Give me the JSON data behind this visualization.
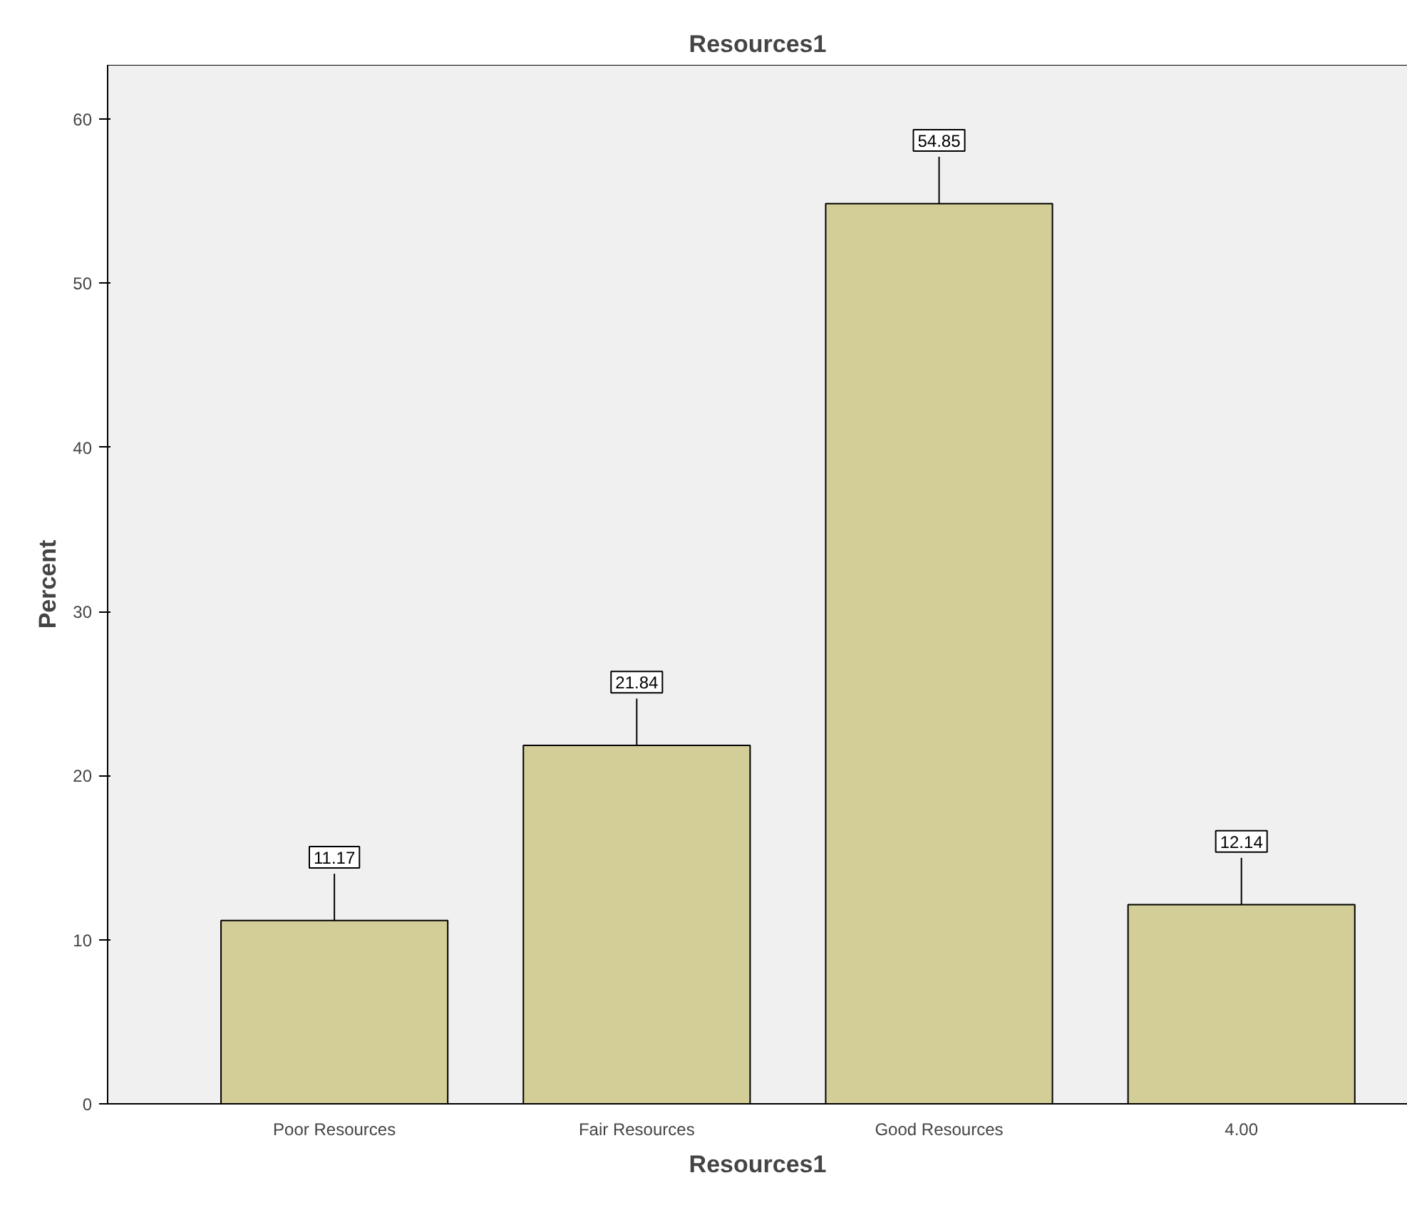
{
  "chart_data": {
    "type": "bar",
    "title": "Resources1",
    "xlabel": "Resources1",
    "ylabel": "Percent",
    "categories": [
      "Poor Resources",
      "Fair Resources",
      "Good Resources",
      "4.00"
    ],
    "values": [
      11.17,
      21.84,
      54.85,
      12.14
    ],
    "color": "#d3ce97",
    "ylim": [
      0,
      63.3
    ],
    "yticks": [
      0,
      10,
      20,
      30,
      40,
      50,
      60
    ],
    "grid": false,
    "data_labels": true
  }
}
